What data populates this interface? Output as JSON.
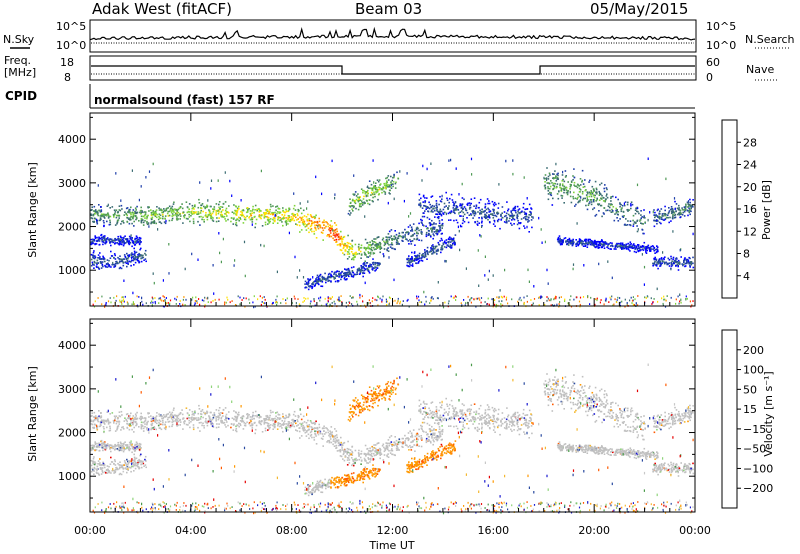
{
  "header": {
    "station": "Adak West (fitACF)",
    "beam": "Beam 03",
    "date": "05/May/2015"
  },
  "params": {
    "nsky_label": "N.Sky",
    "nsearch_label": "N.Search",
    "nsky_ticks": [
      "10^5",
      "10^0"
    ],
    "nsearch_ticks": [
      "10^5",
      "10^0"
    ],
    "freq_label": "Freq.",
    "freq_unit": "[MHz]",
    "freq_ticks": [
      "18",
      "8"
    ],
    "nave_label": "Nave",
    "nave_ticks": [
      "60",
      "0"
    ],
    "cpid_label": "CPID",
    "cpid_text": "normalsound (fast) 157 RF"
  },
  "colors": {
    "power_scale": [
      "#0000ff",
      "#1f3faa",
      "#3a6b72",
      "#4f9a55",
      "#7fd43a",
      "#ffe000",
      "#ff9800",
      "#ff5a00",
      "#ff0000"
    ],
    "velocity_scale": [
      "#e60000",
      "#ff5a00",
      "#ff9800",
      "#f4b830",
      "#c8c8c8",
      "#8fd47a",
      "#4a9a4a",
      "#2a4aa0",
      "#1a1ad0"
    ],
    "ground_scatter": "#c0c0c0"
  },
  "chart_data": [
    {
      "type": "heatmap",
      "name": "power",
      "xlabel": "",
      "ylabel": "Slant Range [km]",
      "x_range_hours": [
        0,
        24
      ],
      "ylim": [
        180,
        4600
      ],
      "yticks": [
        "4000",
        "3000",
        "2000",
        "1000"
      ],
      "colorbar": {
        "label": "Power [dB]",
        "ticks": [
          "28",
          "24",
          "20",
          "16",
          "12",
          "8",
          "4"
        ],
        "range": [
          0,
          30
        ]
      },
      "bands": [
        {
          "x": [
            0.0,
            2.0,
            4.0,
            6.0,
            8.0,
            9.0,
            9.8,
            10.0,
            10.5,
            11.0,
            12.0,
            13.0,
            14.0
          ],
          "y_center": [
            2300,
            2250,
            2350,
            2300,
            2250,
            2050,
            1800,
            1600,
            1450,
            1500,
            1700,
            1900,
            2000
          ],
          "width": 250,
          "intensity": [
            10,
            14,
            16,
            18,
            20,
            24,
            28,
            22,
            18,
            14,
            10,
            8,
            6
          ]
        },
        {
          "x": [
            0.0,
            1.0,
            2.2
          ],
          "y_center": [
            1250,
            1200,
            1400
          ],
          "width": 200,
          "intensity": [
            6,
            6,
            6
          ]
        },
        {
          "x": [
            0.0,
            2.0
          ],
          "y_center": [
            1700,
            1700
          ],
          "width": 120,
          "intensity": [
            4,
            4
          ]
        },
        {
          "x": [
            10.2,
            10.8,
            11.5,
            12.2
          ],
          "y_center": [
            2500,
            2700,
            2900,
            3100
          ],
          "width": 250,
          "intensity": [
            14,
            16,
            16,
            12
          ]
        },
        {
          "x": [
            8.5,
            9.5,
            10.5,
            11.5
          ],
          "y_center": [
            700,
            850,
            1000,
            1150
          ],
          "width": 150,
          "intensity": [
            6,
            6,
            6,
            6
          ]
        },
        {
          "x": [
            12.5,
            13.5,
            14.5
          ],
          "y_center": [
            1200,
            1450,
            1700
          ],
          "width": 150,
          "intensity": [
            6,
            6,
            6
          ]
        },
        {
          "x": [
            13.0,
            14.5,
            16.0,
            17.5
          ],
          "y_center": [
            2500,
            2400,
            2300,
            2200
          ],
          "width": 300,
          "intensity": [
            6,
            6,
            6,
            6
          ]
        },
        {
          "x": [
            18.0,
            19.0,
            20.0,
            21.0,
            22.0
          ],
          "y_center": [
            3000,
            2900,
            2700,
            2400,
            2100
          ],
          "width": 400,
          "intensity": [
            12,
            14,
            12,
            10,
            8
          ]
        },
        {
          "x": [
            18.5,
            19.5,
            20.5,
            21.5,
            22.5
          ],
          "y_center": [
            1700,
            1650,
            1600,
            1550,
            1500
          ],
          "width": 100,
          "intensity": [
            4,
            4,
            4,
            4,
            4
          ]
        },
        {
          "x": [
            22.3,
            23.0,
            23.9
          ],
          "y_center": [
            2200,
            2300,
            2500
          ],
          "width": 200,
          "intensity": [
            8,
            8,
            10
          ]
        },
        {
          "x": [
            22.3,
            23.9
          ],
          "y_center": [
            1200,
            1200
          ],
          "width": 150,
          "intensity": [
            6,
            6
          ]
        }
      ]
    },
    {
      "type": "heatmap",
      "name": "velocity",
      "xlabel": "Time UT",
      "ylabel": "Slant Range [km]",
      "x_range_hours": [
        0,
        24
      ],
      "xticks": [
        "00:00",
        "04:00",
        "08:00",
        "12:00",
        "16:00",
        "20:00",
        "00:00"
      ],
      "ylim": [
        180,
        4600
      ],
      "yticks": [
        "4000",
        "3000",
        "2000",
        "1000"
      ],
      "colorbar": {
        "label": "Velocity [m s⁻¹]",
        "ticks": [
          "200",
          "100",
          "50",
          "15",
          "−15",
          "−50",
          "−100",
          "−200"
        ]
      },
      "notes": "Mostly ground scatter (grey); negative velocities (orange) in 10–14 UT bands near 700–3100 km"
    }
  ]
}
